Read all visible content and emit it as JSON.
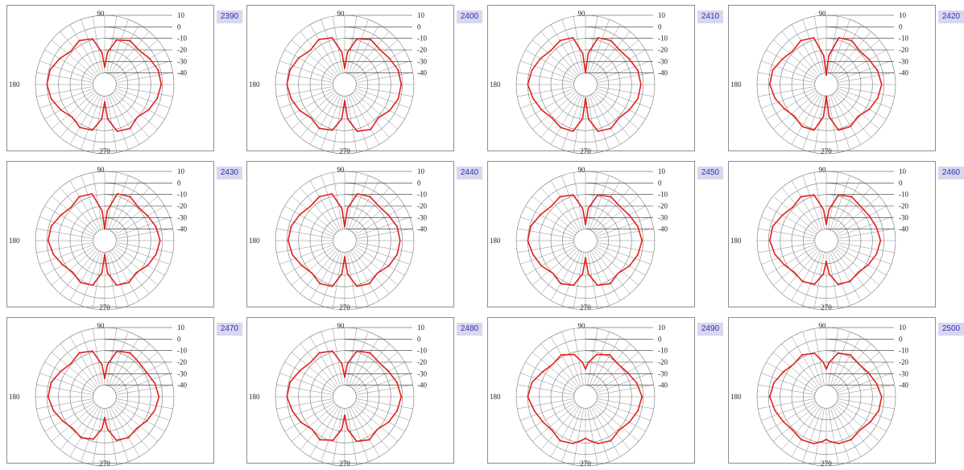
{
  "chart_data": [
    {
      "type": "polar",
      "frequency": "2390",
      "radial_ticks": [
        "10",
        "0",
        "-10",
        "-20",
        "-30",
        "-40"
      ],
      "angle_labels": {
        "a90": "90",
        "a180": "180",
        "a270": "270"
      },
      "rlim": [
        -50,
        10
      ],
      "series": [
        {
          "color": "#e0201c",
          "angles": [
            0,
            15,
            30,
            45,
            60,
            75,
            85,
            90,
            95,
            105,
            120,
            135,
            150,
            165,
            180,
            195,
            210,
            225,
            240,
            255,
            265,
            270,
            275,
            285,
            300,
            315,
            330,
            345
          ],
          "values": [
            -1,
            -2,
            -5,
            -8,
            -6,
            -10,
            -22,
            -35,
            -22,
            -9,
            -6,
            -9,
            -5,
            -1,
            0,
            -2,
            -6,
            -10,
            -7,
            -9,
            -20,
            -35,
            -20,
            -8,
            -6,
            -10,
            -6,
            -3
          ]
        }
      ]
    },
    {
      "type": "polar",
      "frequency": "2400",
      "radial_ticks": [
        "10",
        "0",
        "-10",
        "-20",
        "-30",
        "-40"
      ],
      "angle_labels": {
        "a90": "90",
        "a180": "180",
        "a270": "270"
      },
      "rlim": [
        -50,
        10
      ],
      "series": [
        {
          "color": "#e0201c",
          "angles": [
            0,
            15,
            30,
            45,
            60,
            75,
            85,
            90,
            95,
            105,
            120,
            135,
            150,
            165,
            180,
            195,
            210,
            225,
            240,
            255,
            265,
            270,
            275,
            285,
            300,
            315,
            330,
            345
          ],
          "values": [
            -1,
            -2,
            -5,
            -7,
            -5,
            -9,
            -22,
            -36,
            -22,
            -8,
            -5,
            -8,
            -4,
            -1,
            0,
            -2,
            -5,
            -9,
            -6,
            -9,
            -20,
            -36,
            -20,
            -8,
            -5,
            -9,
            -5,
            -2
          ]
        }
      ]
    },
    {
      "type": "polar",
      "frequency": "2410",
      "radial_ticks": [
        "10",
        "0",
        "-10",
        "-20",
        "-30",
        "-40"
      ],
      "angle_labels": {
        "a90": "90",
        "a180": "180",
        "a270": "270"
      },
      "rlim": [
        -50,
        10
      ],
      "series": [
        {
          "color": "#e0201c",
          "angles": [
            0,
            15,
            30,
            45,
            60,
            75,
            85,
            90,
            95,
            105,
            120,
            135,
            150,
            165,
            180,
            195,
            210,
            225,
            240,
            255,
            265,
            270,
            275,
            285,
            300,
            315,
            330,
            345
          ],
          "values": [
            -2,
            -3,
            -6,
            -8,
            -6,
            -8,
            -23,
            -40,
            -23,
            -8,
            -6,
            -8,
            -5,
            -2,
            0,
            -3,
            -6,
            -9,
            -7,
            -8,
            -20,
            -38,
            -20,
            -8,
            -6,
            -9,
            -6,
            -3
          ]
        }
      ]
    },
    {
      "type": "polar",
      "frequency": "2420",
      "radial_ticks": [
        "10",
        "0",
        "-10",
        "-20",
        "-30",
        "-40"
      ],
      "angle_labels": {
        "a90": "90",
        "a180": "180",
        "a270": "270"
      },
      "rlim": [
        -50,
        10
      ],
      "series": [
        {
          "color": "#e0201c",
          "angles": [
            0,
            15,
            30,
            45,
            60,
            75,
            85,
            90,
            95,
            105,
            120,
            135,
            150,
            165,
            180,
            195,
            210,
            225,
            240,
            255,
            265,
            270,
            275,
            285,
            300,
            315,
            330,
            345
          ],
          "values": [
            -2,
            -4,
            -7,
            -9,
            -6,
            -8,
            -25,
            -42,
            -25,
            -8,
            -6,
            -9,
            -6,
            -2,
            -1,
            -4,
            -8,
            -11,
            -8,
            -9,
            -22,
            -40,
            -22,
            -9,
            -8,
            -11,
            -7,
            -4
          ]
        }
      ]
    },
    {
      "type": "polar",
      "frequency": "2430",
      "radial_ticks": [
        "10",
        "0",
        "-10",
        "-20",
        "-30",
        "-40"
      ],
      "angle_labels": {
        "a90": "90",
        "a180": "180",
        "a270": "270"
      },
      "rlim": [
        -50,
        10
      ],
      "series": [
        {
          "color": "#e0201c",
          "angles": [
            0,
            15,
            30,
            45,
            60,
            75,
            85,
            90,
            95,
            105,
            120,
            135,
            150,
            165,
            180,
            195,
            210,
            225,
            240,
            255,
            265,
            270,
            275,
            285,
            300,
            315,
            330,
            345
          ],
          "values": [
            -2,
            -4,
            -7,
            -9,
            -6,
            -8,
            -24,
            -40,
            -24,
            -8,
            -6,
            -9,
            -6,
            -2,
            -1,
            -4,
            -8,
            -11,
            -8,
            -10,
            -22,
            -38,
            -22,
            -10,
            -8,
            -11,
            -7,
            -4
          ]
        }
      ]
    },
    {
      "type": "polar",
      "frequency": "2440",
      "radial_ticks": [
        "10",
        "0",
        "-10",
        "-20",
        "-30",
        "-40"
      ],
      "angle_labels": {
        "a90": "90",
        "a180": "180",
        "a270": "270"
      },
      "rlim": [
        -50,
        10
      ],
      "series": [
        {
          "color": "#e0201c",
          "angles": [
            0,
            15,
            30,
            45,
            60,
            75,
            85,
            90,
            95,
            105,
            120,
            135,
            150,
            165,
            180,
            195,
            210,
            225,
            240,
            255,
            265,
            270,
            275,
            285,
            300,
            315,
            330,
            345
          ],
          "values": [
            -2,
            -3,
            -6,
            -8,
            -6,
            -8,
            -22,
            -38,
            -22,
            -8,
            -6,
            -8,
            -5,
            -2,
            -1,
            -3,
            -7,
            -10,
            -7,
            -9,
            -21,
            -36,
            -21,
            -9,
            -7,
            -10,
            -6,
            -3
          ]
        }
      ]
    },
    {
      "type": "polar",
      "frequency": "2450",
      "radial_ticks": [
        "10",
        "0",
        "-10",
        "-20",
        "-30",
        "-40"
      ],
      "angle_labels": {
        "a90": "90",
        "a180": "180",
        "a270": "270"
      },
      "rlim": [
        -50,
        10
      ],
      "series": [
        {
          "color": "#e0201c",
          "angles": [
            0,
            15,
            30,
            45,
            60,
            75,
            85,
            90,
            95,
            105,
            120,
            135,
            150,
            165,
            180,
            195,
            210,
            225,
            240,
            255,
            265,
            270,
            275,
            285,
            300,
            315,
            330,
            345
          ],
          "values": [
            -1,
            -3,
            -6,
            -8,
            -6,
            -9,
            -22,
            -36,
            -22,
            -9,
            -6,
            -8,
            -5,
            -1,
            0,
            -3,
            -6,
            -10,
            -7,
            -10,
            -21,
            -35,
            -21,
            -10,
            -7,
            -10,
            -6,
            -3
          ]
        }
      ]
    },
    {
      "type": "polar",
      "frequency": "2460",
      "radial_ticks": [
        "10",
        "0",
        "-10",
        "-20",
        "-30",
        "-40"
      ],
      "angle_labels": {
        "a90": "90",
        "a180": "180",
        "a270": "270"
      },
      "rlim": [
        -50,
        10
      ],
      "series": [
        {
          "color": "#e0201c",
          "angles": [
            0,
            15,
            30,
            45,
            60,
            75,
            85,
            90,
            95,
            105,
            120,
            135,
            150,
            165,
            180,
            195,
            210,
            225,
            240,
            255,
            265,
            270,
            275,
            285,
            300,
            315,
            330,
            345
          ],
          "values": [
            -3,
            -5,
            -7,
            -8,
            -6,
            -9,
            -23,
            -36,
            -23,
            -9,
            -6,
            -9,
            -6,
            -2,
            -1,
            -4,
            -8,
            -11,
            -9,
            -11,
            -21,
            -32,
            -21,
            -11,
            -9,
            -11,
            -8,
            -5
          ]
        }
      ]
    },
    {
      "type": "polar",
      "frequency": "2470",
      "radial_ticks": [
        "10",
        "0",
        "-10",
        "-20",
        "-30",
        "-40"
      ],
      "angle_labels": {
        "a90": "90",
        "a180": "180",
        "a270": "270"
      },
      "rlim": [
        -50,
        10
      ],
      "series": [
        {
          "color": "#e0201c",
          "angles": [
            0,
            15,
            30,
            45,
            60,
            75,
            85,
            90,
            95,
            105,
            120,
            135,
            150,
            165,
            180,
            195,
            210,
            225,
            240,
            255,
            265,
            270,
            275,
            285,
            300,
            315,
            330,
            345
          ],
          "values": [
            -3,
            -5,
            -8,
            -8,
            -6,
            -9,
            -22,
            -34,
            -22,
            -9,
            -6,
            -9,
            -6,
            -2,
            -1,
            -4,
            -8,
            -11,
            -9,
            -12,
            -22,
            -32,
            -22,
            -11,
            -9,
            -11,
            -8,
            -5
          ]
        }
      ]
    },
    {
      "type": "polar",
      "frequency": "2480",
      "radial_ticks": [
        "10",
        "0",
        "-10",
        "-20",
        "-30",
        "-40"
      ],
      "angle_labels": {
        "a90": "90",
        "a180": "180",
        "a270": "270"
      },
      "rlim": [
        -50,
        10
      ],
      "series": [
        {
          "color": "#e0201c",
          "angles": [
            0,
            15,
            30,
            45,
            60,
            75,
            85,
            90,
            95,
            105,
            120,
            135,
            150,
            165,
            180,
            195,
            210,
            225,
            240,
            255,
            265,
            270,
            275,
            285,
            300,
            315,
            330,
            345
          ],
          "values": [
            -1,
            -3,
            -6,
            -8,
            -6,
            -9,
            -21,
            -33,
            -21,
            -9,
            -6,
            -8,
            -5,
            -1,
            0,
            -3,
            -6,
            -10,
            -7,
            -11,
            -22,
            -34,
            -22,
            -10,
            -7,
            -10,
            -6,
            -3
          ]
        }
      ]
    },
    {
      "type": "polar",
      "frequency": "2490",
      "radial_ticks": [
        "10",
        "0",
        "-10",
        "-20",
        "-30",
        "-40"
      ],
      "angle_labels": {
        "a90": "90",
        "a180": "180",
        "a270": "270"
      },
      "rlim": [
        -50,
        10
      ],
      "series": [
        {
          "color": "#e0201c",
          "angles": [
            0,
            15,
            30,
            45,
            60,
            75,
            85,
            90,
            95,
            105,
            120,
            135,
            150,
            165,
            180,
            195,
            210,
            225,
            240,
            255,
            265,
            270,
            275,
            285,
            300,
            315,
            330,
            345
          ],
          "values": [
            -1,
            -4,
            -8,
            -10,
            -8,
            -12,
            -20,
            -26,
            -20,
            -12,
            -8,
            -10,
            -7,
            -2,
            0,
            -4,
            -7,
            -9,
            -6,
            -8,
            -12,
            -14,
            -12,
            -8,
            -6,
            -9,
            -6,
            -3
          ]
        }
      ]
    },
    {
      "type": "polar",
      "frequency": "2500",
      "radial_ticks": [
        "10",
        "0",
        "-10",
        "-20",
        "-30",
        "-40"
      ],
      "angle_labels": {
        "a90": "90",
        "a180": "180",
        "a270": "270"
      },
      "rlim": [
        -50,
        10
      ],
      "series": [
        {
          "color": "#e0201c",
          "angles": [
            0,
            15,
            30,
            45,
            60,
            75,
            85,
            90,
            95,
            105,
            120,
            135,
            150,
            165,
            180,
            195,
            210,
            225,
            240,
            255,
            265,
            270,
            275,
            285,
            300,
            315,
            330,
            345
          ],
          "values": [
            -2,
            -5,
            -8,
            -10,
            -8,
            -11,
            -20,
            -26,
            -20,
            -11,
            -8,
            -10,
            -7,
            -3,
            -1,
            -4,
            -7,
            -9,
            -7,
            -8,
            -11,
            -13,
            -11,
            -8,
            -7,
            -9,
            -6,
            -3
          ]
        }
      ]
    }
  ]
}
